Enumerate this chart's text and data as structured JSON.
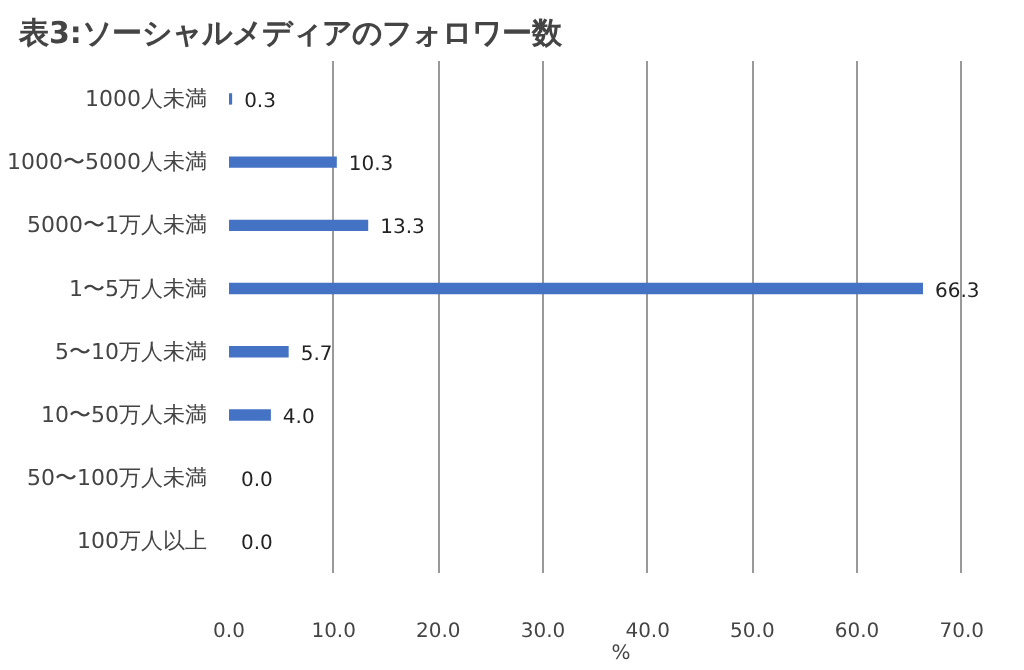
{
  "chart_data": {
    "type": "bar",
    "orientation": "horizontal",
    "title": "表3:ソーシャルメディアのフォロワー数",
    "xlabel": "%",
    "categories": [
      "1000人未満",
      "1000〜5000人未満",
      "5000〜1万人未満",
      "1〜5万人未満",
      "5〜10万人未満",
      "10〜50万人未満",
      "50〜100万人未満",
      "100万人以上"
    ],
    "values": [
      0.3,
      10.3,
      13.3,
      66.3,
      5.7,
      4.0,
      0.0,
      0.0
    ],
    "color": "#4472c4",
    "xlim": [
      0,
      70
    ],
    "xticks": [
      {
        "value": 0,
        "label": "0.0"
      },
      {
        "value": 10,
        "label": "10.0"
      },
      {
        "value": 20,
        "label": "20.0"
      },
      {
        "value": 30,
        "label": "30.0"
      },
      {
        "value": 40,
        "label": "40.0"
      },
      {
        "value": 50,
        "label": "50.0"
      },
      {
        "value": 60,
        "label": "60.0"
      },
      {
        "value": 70,
        "label": "70.0"
      }
    ],
    "value_labels": [
      "0.3",
      "10.3",
      "13.3",
      "66.3",
      "5.7",
      "4.0",
      "0.0",
      "0.0"
    ],
    "grid": "x"
  }
}
